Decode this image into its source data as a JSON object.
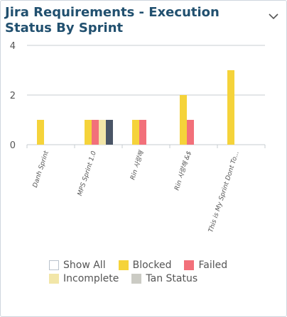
{
  "widget": {
    "title": "Jira Requirements - Execution Status By Sprint",
    "collapse_icon": "chevron-down-icon"
  },
  "legend": {
    "items": [
      {
        "label": "Show All",
        "color": "#ffffff",
        "outline": true
      },
      {
        "label": "Blocked",
        "color": "#f5d33a"
      },
      {
        "label": "Failed",
        "color": "#f2707a"
      },
      {
        "label": "Incomplete",
        "color": "#f2e6a8"
      },
      {
        "label": "Tan Status",
        "color": "#cbcbc4"
      }
    ]
  },
  "chart_data": {
    "type": "bar",
    "title": "",
    "xlabel": "",
    "ylabel": "",
    "ylim": [
      0,
      4
    ],
    "yticks": [
      0,
      2,
      4
    ],
    "grid": true,
    "categories": [
      "Danh Sprint",
      "MPS Sprint 1.0",
      "Rin 사랑해",
      "Rin 사랑해 &$",
      "This is My Sprint Dont To..."
    ],
    "series": [
      {
        "name": "Blocked",
        "color": "#f5d33a",
        "values": [
          1,
          1,
          1,
          2,
          3
        ]
      },
      {
        "name": "Failed",
        "color": "#f2707a",
        "values": [
          0,
          1,
          1,
          1,
          0
        ]
      },
      {
        "name": "Incomplete",
        "color": "#f2e6a8",
        "values": [
          0,
          1,
          0,
          0,
          0
        ]
      },
      {
        "name": "",
        "color": "#4a5566",
        "values": [
          0,
          1,
          0,
          0,
          0
        ]
      }
    ]
  }
}
